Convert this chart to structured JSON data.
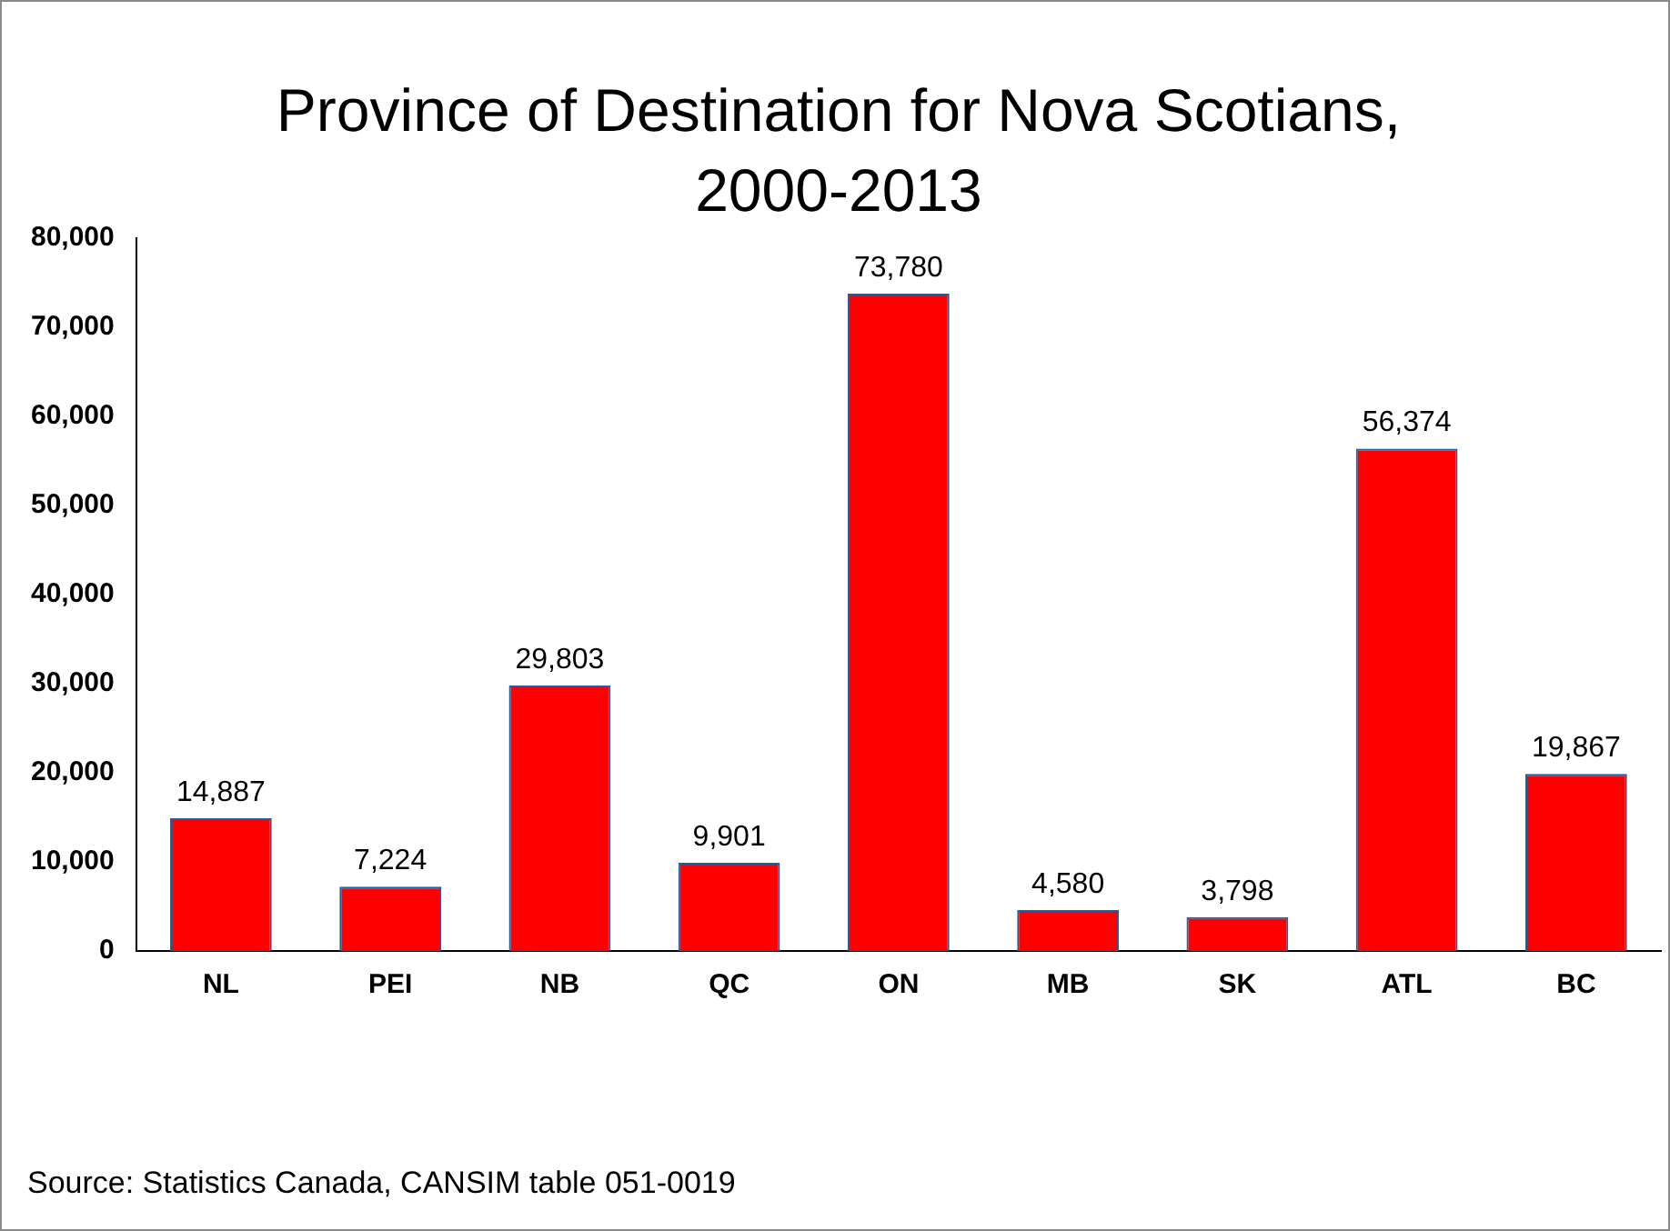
{
  "chart_data": {
    "type": "bar",
    "title": "Province of Destination for Nova Scotians, 2000-2013",
    "categories": [
      "NL",
      "PEI",
      "NB",
      "QC",
      "ON",
      "MB",
      "SK",
      "ATL",
      "BC"
    ],
    "values": [
      14887,
      7224,
      29803,
      9901,
      73780,
      4580,
      3798,
      56374,
      19867
    ],
    "color": "#ff0000",
    "ylim": [
      0,
      80000
    ],
    "yticks": [
      {
        "value": 0,
        "label": "0"
      },
      {
        "value": 10000,
        "label": "10,000"
      },
      {
        "value": 20000,
        "label": "20,000"
      },
      {
        "value": 30000,
        "label": "30,000"
      },
      {
        "value": 40000,
        "label": "40,000"
      },
      {
        "value": 50000,
        "label": "50,000"
      },
      {
        "value": 60000,
        "label": "60,000"
      },
      {
        "value": 70000,
        "label": "70,000"
      },
      {
        "value": 80000,
        "label": "80,000"
      }
    ],
    "value_labels": [
      "14,887",
      "7,224",
      "29,803",
      "9,901",
      "73,780",
      "4,580",
      "3,798",
      "56,374",
      "19,867"
    ],
    "grid": false,
    "legend": false,
    "annotations": [
      "Source: Statistics Canada, CANSIM table 051-0019"
    ]
  }
}
